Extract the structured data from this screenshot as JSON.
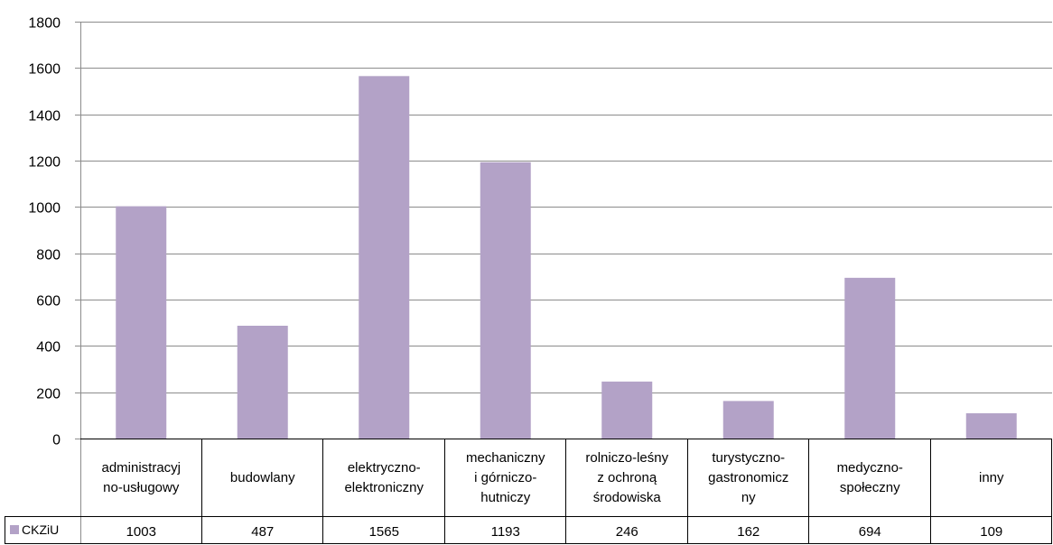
{
  "chart_data": {
    "type": "bar",
    "categories": [
      [
        "administracyj",
        "no-usługowy"
      ],
      [
        "budowlany"
      ],
      [
        "elektryczno-",
        "elektroniczny"
      ],
      [
        "mechaniczny",
        "i górniczo-",
        "hutniczy"
      ],
      [
        "rolniczo-leśny",
        "z ochroną",
        "środowiska"
      ],
      [
        "turystyczno-",
        "gastronomicz",
        "ny"
      ],
      [
        "medyczno-",
        "społeczny"
      ],
      [
        "inny"
      ]
    ],
    "series": [
      {
        "name": "CKZiU",
        "values": [
          1003,
          487,
          1565,
          1193,
          246,
          162,
          694,
          109
        ],
        "color": "#b3a2c7"
      }
    ],
    "yticks": [
      "0",
      "200",
      "400",
      "600",
      "800",
      "1000",
      "1200",
      "1400",
      "1600",
      "1800"
    ],
    "ylim": [
      0,
      1800
    ],
    "grid": true,
    "legend": "data-table-left",
    "data_table": true
  }
}
